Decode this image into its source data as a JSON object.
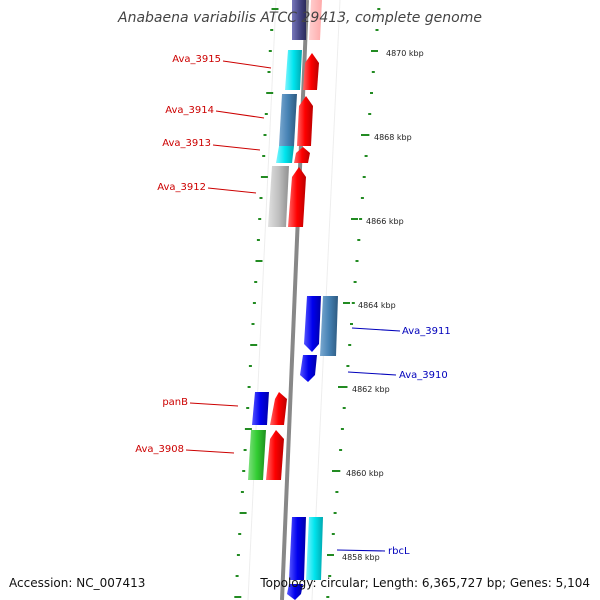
{
  "title": "Anabaena variabilis ATCC 29413, complete genome",
  "footer": {
    "accession": "Accession: NC_007413",
    "summary": "Topology: circular; Length: 6,365,727 bp; Genes: 5,104"
  },
  "colors": {
    "backbone": "#888888",
    "tick": "#228b22",
    "left_label": "#cc0000",
    "right_label": "#0000bb",
    "red": "#ff0000",
    "blue": "#0000ee",
    "steelblue": "#4682b4",
    "cyan": "#00e5ee",
    "green": "#32cd32",
    "gray": "#c0c0c0",
    "navy": "#4a4a8a"
  },
  "scale_labels": [
    "4870 kbp",
    "4868 kbp",
    "4866 kbp",
    "4864 kbp",
    "4862 kbp",
    "4860 kbp",
    "4858 kbp"
  ],
  "gene_labels_left": [
    "Ava_3915",
    "Ava_3914",
    "Ava_3913",
    "Ava_3912",
    "panB",
    "Ava_3908"
  ],
  "gene_labels_right": [
    "Ava_3911",
    "Ava_3910",
    "rbcL"
  ]
}
